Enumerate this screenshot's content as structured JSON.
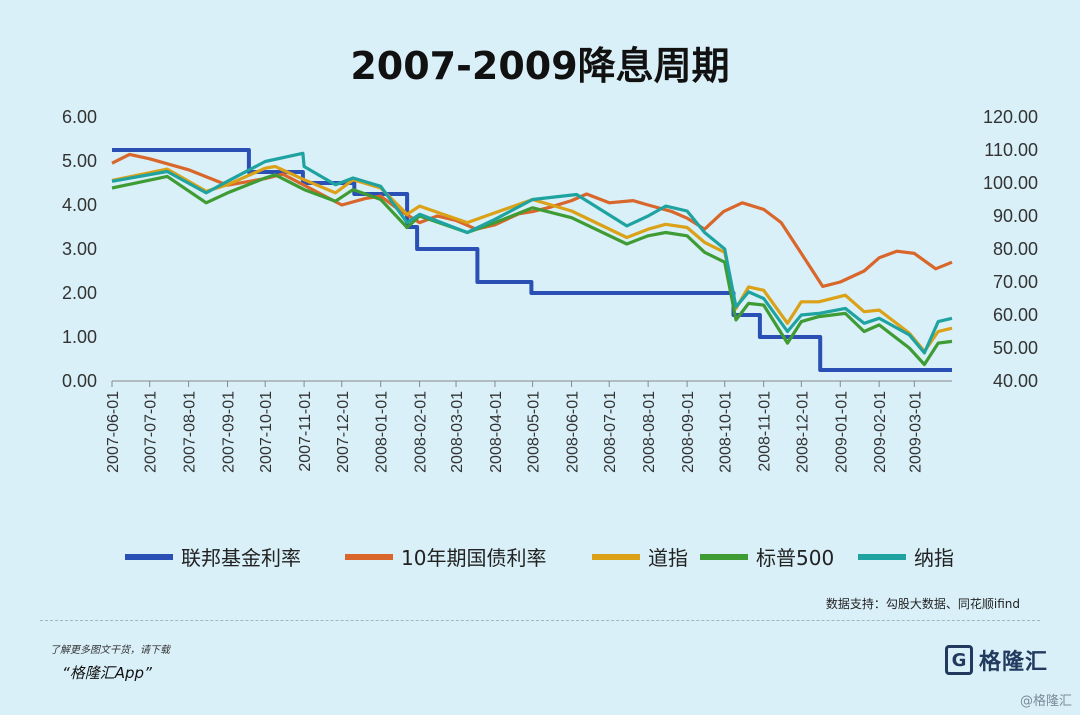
{
  "header": {
    "title": "2007-2009降息周期"
  },
  "source": "数据支持：勾股大数据、同花顺ifind",
  "footer": {
    "line1": "了解更多图文干货，请下载",
    "app": "“格隆汇App”"
  },
  "logo": {
    "mark": "G",
    "text": "格隆汇"
  },
  "watermark": "@格隆汇",
  "chart_data": {
    "type": "line",
    "title": "2007-2009降息周期",
    "x_labels": [
      "2007-06-01",
      "2007-07-01",
      "2007-08-01",
      "2007-09-01",
      "2007-10-01",
      "2007-11-01",
      "2007-12-01",
      "2008-01-01",
      "2008-02-01",
      "2008-03-01",
      "2008-04-01",
      "2008-05-01",
      "2008-06-01",
      "2008-07-01",
      "2008-08-01",
      "2008-09-01",
      "2008-10-01",
      "2008-11-01",
      "2008-12-01",
      "2009-01-01",
      "2009-02-01",
      "2009-03-01"
    ],
    "x_range": [
      "2007-06-01",
      "2009-03-31"
    ],
    "y_left": {
      "range": [
        0,
        6
      ],
      "ticks": [
        "0.00",
        "1.00",
        "2.00",
        "3.00",
        "4.00",
        "5.00",
        "6.00"
      ]
    },
    "y_right": {
      "range": [
        40,
        120
      ],
      "ticks": [
        "40.00",
        "50.00",
        "60.00",
        "70.00",
        "80.00",
        "90.00",
        "100.00",
        "110.00",
        "120.00"
      ]
    },
    "grid": false,
    "legend_position": "bottom",
    "series": [
      {
        "name": "联邦基金利率",
        "axis": "left",
        "color": "#2a4fb5",
        "step": true,
        "points": [
          [
            "2007-06-01",
            5.25
          ],
          [
            "2007-09-18",
            4.75
          ],
          [
            "2007-10-31",
            4.5
          ],
          [
            "2007-12-11",
            4.25
          ],
          [
            "2008-01-22",
            3.5
          ],
          [
            "2008-01-30",
            3.0
          ],
          [
            "2008-03-18",
            2.25
          ],
          [
            "2008-04-30",
            2.0
          ],
          [
            "2008-10-08",
            1.5
          ],
          [
            "2008-10-29",
            1.0
          ],
          [
            "2008-12-16",
            0.25
          ],
          [
            "2009-03-31",
            0.25
          ]
        ]
      },
      {
        "name": "10年期国债利率",
        "axis": "left",
        "color": "#d9662b",
        "points": [
          [
            "2007-06-01",
            4.95
          ],
          [
            "2007-06-15",
            5.15
          ],
          [
            "2007-07-01",
            5.05
          ],
          [
            "2007-08-01",
            4.8
          ],
          [
            "2007-09-01",
            4.45
          ],
          [
            "2007-10-01",
            4.6
          ],
          [
            "2007-10-15",
            4.7
          ],
          [
            "2007-11-01",
            4.45
          ],
          [
            "2007-12-01",
            4.0
          ],
          [
            "2007-12-20",
            4.15
          ],
          [
            "2008-01-01",
            4.2
          ],
          [
            "2008-01-15",
            3.9
          ],
          [
            "2008-02-01",
            3.6
          ],
          [
            "2008-02-15",
            3.75
          ],
          [
            "2008-03-01",
            3.65
          ],
          [
            "2008-03-17",
            3.45
          ],
          [
            "2008-04-01",
            3.55
          ],
          [
            "2008-04-20",
            3.8
          ],
          [
            "2008-05-01",
            3.85
          ],
          [
            "2008-05-15",
            3.95
          ],
          [
            "2008-06-01",
            4.1
          ],
          [
            "2008-06-13",
            4.25
          ],
          [
            "2008-07-01",
            4.05
          ],
          [
            "2008-07-20",
            4.1
          ],
          [
            "2008-08-01",
            4.0
          ],
          [
            "2008-08-20",
            3.85
          ],
          [
            "2008-09-01",
            3.7
          ],
          [
            "2008-09-15",
            3.45
          ],
          [
            "2008-09-30",
            3.85
          ],
          [
            "2008-10-15",
            4.05
          ],
          [
            "2008-11-01",
            3.9
          ],
          [
            "2008-11-15",
            3.6
          ],
          [
            "2008-12-01",
            2.9
          ],
          [
            "2008-12-18",
            2.15
          ],
          [
            "2009-01-01",
            2.25
          ],
          [
            "2009-01-20",
            2.5
          ],
          [
            "2009-02-01",
            2.8
          ],
          [
            "2009-02-15",
            2.95
          ],
          [
            "2009-03-01",
            2.9
          ],
          [
            "2009-03-18",
            2.55
          ],
          [
            "2009-03-31",
            2.7
          ]
        ]
      },
      {
        "name": "道指",
        "axis": "right",
        "color": "#dba117",
        "points": [
          [
            "2007-06-01",
            100.8
          ],
          [
            "2007-07-15",
            104.2
          ],
          [
            "2007-08-15",
            97.5
          ],
          [
            "2007-09-01",
            99.5
          ],
          [
            "2007-10-01",
            104.5
          ],
          [
            "2007-10-09",
            105.0
          ],
          [
            "2007-11-01",
            101.0
          ],
          [
            "2007-11-26",
            97.0
          ],
          [
            "2007-12-10",
            101.0
          ],
          [
            "2008-01-01",
            98.5
          ],
          [
            "2008-01-22",
            90.5
          ],
          [
            "2008-02-01",
            93.0
          ],
          [
            "2008-03-10",
            88.0
          ],
          [
            "2008-04-01",
            91.0
          ],
          [
            "2008-05-01",
            95.0
          ],
          [
            "2008-06-01",
            91.5
          ],
          [
            "2008-07-15",
            83.5
          ],
          [
            "2008-08-01",
            86.0
          ],
          [
            "2008-08-15",
            87.5
          ],
          [
            "2008-09-01",
            86.5
          ],
          [
            "2008-09-15",
            82.0
          ],
          [
            "2008-10-01",
            79.0
          ],
          [
            "2008-10-10",
            62.0
          ],
          [
            "2008-10-20",
            68.5
          ],
          [
            "2008-11-01",
            67.5
          ],
          [
            "2008-11-20",
            57.5
          ],
          [
            "2008-12-01",
            64.0
          ],
          [
            "2008-12-15",
            64.0
          ],
          [
            "2009-01-05",
            66.0
          ],
          [
            "2009-01-20",
            61.0
          ],
          [
            "2009-02-01",
            61.5
          ],
          [
            "2009-02-25",
            54.5
          ],
          [
            "2009-03-09",
            49.0
          ],
          [
            "2009-03-20",
            55.0
          ],
          [
            "2009-03-31",
            56.0
          ]
        ]
      },
      {
        "name": "标普500",
        "axis": "right",
        "color": "#3f9c35",
        "points": [
          [
            "2007-06-01",
            98.5
          ],
          [
            "2007-07-15",
            102.0
          ],
          [
            "2007-08-15",
            94.0
          ],
          [
            "2007-09-01",
            97.0
          ],
          [
            "2007-10-01",
            101.5
          ],
          [
            "2007-10-09",
            102.5
          ],
          [
            "2007-11-01",
            98.0
          ],
          [
            "2007-11-26",
            94.5
          ],
          [
            "2007-12-10",
            98.0
          ],
          [
            "2008-01-01",
            95.0
          ],
          [
            "2008-01-22",
            86.5
          ],
          [
            "2008-02-01",
            90.0
          ],
          [
            "2008-03-10",
            85.0
          ],
          [
            "2008-04-01",
            88.0
          ],
          [
            "2008-05-01",
            92.5
          ],
          [
            "2008-06-01",
            89.5
          ],
          [
            "2008-07-15",
            81.5
          ],
          [
            "2008-08-01",
            84.0
          ],
          [
            "2008-08-15",
            85.0
          ],
          [
            "2008-09-01",
            84.0
          ],
          [
            "2008-09-15",
            79.0
          ],
          [
            "2008-10-01",
            76.0
          ],
          [
            "2008-10-10",
            58.5
          ],
          [
            "2008-10-20",
            63.5
          ],
          [
            "2008-11-01",
            63.0
          ],
          [
            "2008-11-20",
            51.5
          ],
          [
            "2008-12-01",
            58.0
          ],
          [
            "2008-12-15",
            59.5
          ],
          [
            "2009-01-05",
            60.5
          ],
          [
            "2009-01-20",
            55.0
          ],
          [
            "2009-02-01",
            57.0
          ],
          [
            "2009-02-25",
            50.0
          ],
          [
            "2009-03-09",
            45.0
          ],
          [
            "2009-03-20",
            51.5
          ],
          [
            "2009-03-31",
            52.0
          ]
        ]
      },
      {
        "name": "纳指",
        "axis": "right",
        "color": "#1fa3a0",
        "points": [
          [
            "2007-06-01",
            100.5
          ],
          [
            "2007-07-15",
            103.5
          ],
          [
            "2007-08-15",
            97.0
          ],
          [
            "2007-09-01",
            100.5
          ],
          [
            "2007-10-01",
            106.5
          ],
          [
            "2007-10-31",
            109.0
          ],
          [
            "2007-11-01",
            105.0
          ],
          [
            "2007-11-26",
            99.5
          ],
          [
            "2007-12-10",
            101.5
          ],
          [
            "2008-01-01",
            99.0
          ],
          [
            "2008-01-22",
            88.0
          ],
          [
            "2008-02-01",
            90.5
          ],
          [
            "2008-03-10",
            85.0
          ],
          [
            "2008-04-01",
            89.0
          ],
          [
            "2008-05-01",
            95.0
          ],
          [
            "2008-06-05",
            96.5
          ],
          [
            "2008-07-15",
            87.0
          ],
          [
            "2008-08-01",
            90.0
          ],
          [
            "2008-08-15",
            93.0
          ],
          [
            "2008-09-01",
            91.5
          ],
          [
            "2008-09-15",
            85.0
          ],
          [
            "2008-10-01",
            80.0
          ],
          [
            "2008-10-10",
            62.5
          ],
          [
            "2008-10-20",
            67.0
          ],
          [
            "2008-11-01",
            65.0
          ],
          [
            "2008-11-20",
            55.0
          ],
          [
            "2008-12-01",
            60.0
          ],
          [
            "2008-12-15",
            60.5
          ],
          [
            "2009-01-05",
            62.0
          ],
          [
            "2009-01-20",
            57.5
          ],
          [
            "2009-02-01",
            59.0
          ],
          [
            "2009-02-25",
            54.0
          ],
          [
            "2009-03-09",
            48.5
          ],
          [
            "2009-03-20",
            58.0
          ],
          [
            "2009-03-31",
            59.0
          ]
        ]
      }
    ]
  }
}
